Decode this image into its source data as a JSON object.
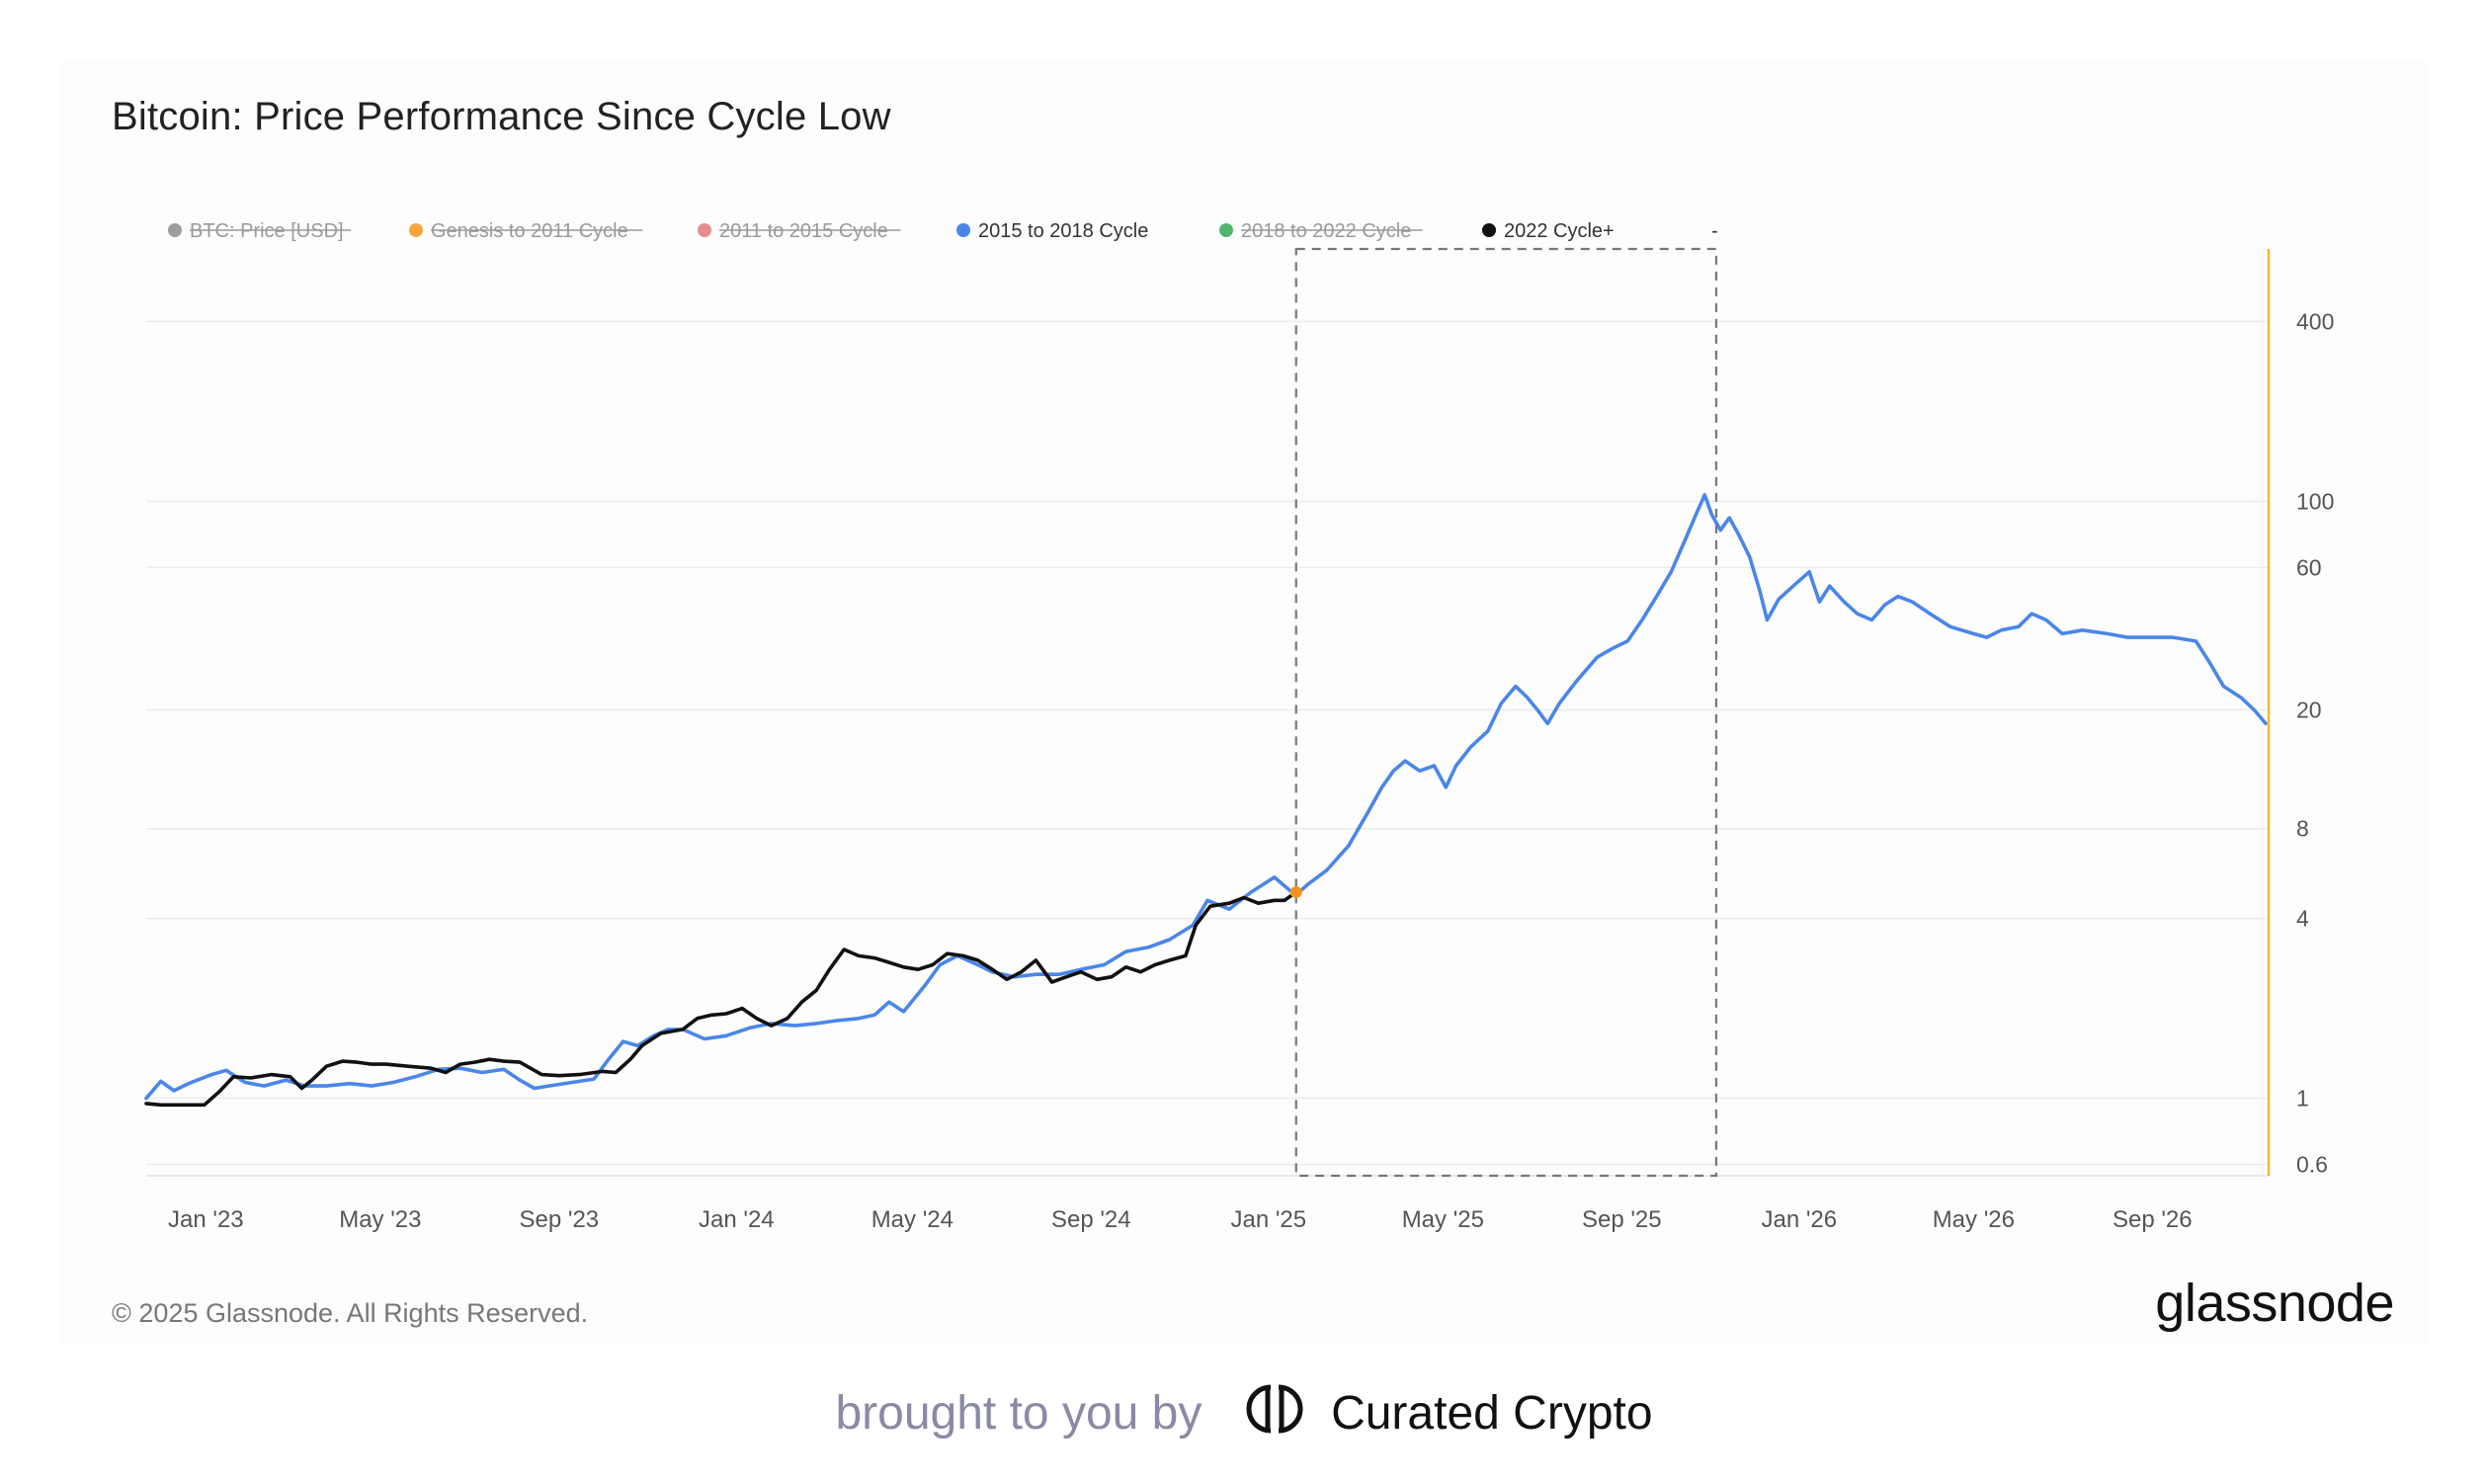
{
  "page": {
    "title": "Bitcoin: Price Performance Since Cycle Low",
    "copyright": "© 2025 Glassnode. All Rights Reserved.",
    "logo": "glassnode",
    "credit_prefix": "brought to you by",
    "credit_brand": "Curated Crypto"
  },
  "chart_data": {
    "type": "line",
    "title": "Bitcoin: Price Performance Since Cycle Low",
    "x_axis": {
      "type": "date",
      "range": [
        "2022-11-21",
        "2026-11-20"
      ],
      "tick_labels": [
        {
          "date": "2023-01-01",
          "label": "Jan '23"
        },
        {
          "date": "2023-05-01",
          "label": "May '23"
        },
        {
          "date": "2023-09-01",
          "label": "Sep '23"
        },
        {
          "date": "2024-01-01",
          "label": "Jan '24"
        },
        {
          "date": "2024-05-01",
          "label": "May '24"
        },
        {
          "date": "2024-09-01",
          "label": "Sep '24"
        },
        {
          "date": "2025-01-01",
          "label": "Jan '25"
        },
        {
          "date": "2025-05-01",
          "label": "May '25"
        },
        {
          "date": "2025-09-01",
          "label": "Sep '25"
        },
        {
          "date": "2026-01-01",
          "label": "Jan '26"
        },
        {
          "date": "2026-05-01",
          "label": "May '26"
        },
        {
          "date": "2026-09-01",
          "label": "Sep '26"
        }
      ]
    },
    "y_axis": {
      "scale": "log",
      "position": "right",
      "range": [
        0.55,
        700
      ],
      "tick_values": [
        0.6,
        1,
        4,
        8,
        20,
        60,
        100,
        400
      ],
      "tick_labels": [
        "0.6",
        "1",
        "4",
        "8",
        "20",
        "60",
        "100",
        "400"
      ]
    },
    "grid": "horizontal",
    "legend": {
      "placement": "top-left",
      "entries": [
        {
          "name": "BTC: Price [USD]",
          "color": "#8c8c8c",
          "disabled": true
        },
        {
          "name": "Genesis to 2011 Cycle",
          "color": "#f7931a",
          "disabled": true
        },
        {
          "name": "2011 to 2015 Cycle",
          "color": "#e07a7a",
          "disabled": true
        },
        {
          "name": "2015 to 2018 Cycle",
          "color": "#4a86e8",
          "disabled": false
        },
        {
          "name": "2018 to 2022 Cycle",
          "color": "#34a853",
          "disabled": true
        },
        {
          "name": "2022 Cycle+",
          "color": "#111111",
          "disabled": false
        },
        {
          "name": "-",
          "color": "#333333",
          "disabled": false
        }
      ]
    },
    "highlight_box": {
      "x_start": "2025-01-20",
      "x_end": "2025-11-05",
      "style": "dashed"
    },
    "current_marker": {
      "x": "2025-01-20",
      "color": "#f7931a"
    },
    "series": [
      {
        "name": "2015 to 2018 Cycle",
        "color": "#4a86e8",
        "points": [
          [
            "2022-11-21",
            1.0
          ],
          [
            "2022-12-01",
            1.14
          ],
          [
            "2022-12-10",
            1.06
          ],
          [
            "2022-12-20",
            1.12
          ],
          [
            "2023-01-05",
            1.2
          ],
          [
            "2023-01-15",
            1.24
          ],
          [
            "2023-01-28",
            1.13
          ],
          [
            "2023-02-10",
            1.1
          ],
          [
            "2023-02-25",
            1.15
          ],
          [
            "2023-03-10",
            1.1
          ],
          [
            "2023-03-25",
            1.1
          ],
          [
            "2023-04-10",
            1.12
          ],
          [
            "2023-04-25",
            1.1
          ],
          [
            "2023-05-10",
            1.13
          ],
          [
            "2023-05-25",
            1.18
          ],
          [
            "2023-06-10",
            1.25
          ],
          [
            "2023-06-25",
            1.26
          ],
          [
            "2023-07-10",
            1.22
          ],
          [
            "2023-07-25",
            1.25
          ],
          [
            "2023-08-05",
            1.15
          ],
          [
            "2023-08-15",
            1.08
          ],
          [
            "2023-08-25",
            1.1
          ],
          [
            "2023-09-10",
            1.13
          ],
          [
            "2023-09-25",
            1.16
          ],
          [
            "2023-10-05",
            1.35
          ],
          [
            "2023-10-15",
            1.55
          ],
          [
            "2023-10-25",
            1.5
          ],
          [
            "2023-11-05",
            1.62
          ],
          [
            "2023-11-15",
            1.7
          ],
          [
            "2023-11-25",
            1.7
          ],
          [
            "2023-12-10",
            1.58
          ],
          [
            "2023-12-25",
            1.62
          ],
          [
            "2024-01-10",
            1.72
          ],
          [
            "2024-01-25",
            1.78
          ],
          [
            "2024-02-10",
            1.75
          ],
          [
            "2024-02-25",
            1.78
          ],
          [
            "2024-03-10",
            1.82
          ],
          [
            "2024-03-25",
            1.85
          ],
          [
            "2024-04-05",
            1.9
          ],
          [
            "2024-04-15",
            2.1
          ],
          [
            "2024-04-25",
            1.95
          ],
          [
            "2024-05-10",
            2.4
          ],
          [
            "2024-05-20",
            2.8
          ],
          [
            "2024-06-01",
            3.0
          ],
          [
            "2024-06-15",
            2.8
          ],
          [
            "2024-06-25",
            2.65
          ],
          [
            "2024-07-10",
            2.55
          ],
          [
            "2024-07-25",
            2.6
          ],
          [
            "2024-08-10",
            2.6
          ],
          [
            "2024-08-25",
            2.7
          ],
          [
            "2024-09-10",
            2.8
          ],
          [
            "2024-09-25",
            3.1
          ],
          [
            "2024-10-10",
            3.2
          ],
          [
            "2024-10-25",
            3.4
          ],
          [
            "2024-11-10",
            3.8
          ],
          [
            "2024-11-20",
            4.6
          ],
          [
            "2024-12-05",
            4.3
          ],
          [
            "2024-12-20",
            4.9
          ],
          [
            "2025-01-05",
            5.5
          ],
          [
            "2025-01-15",
            5.0
          ],
          [
            "2025-01-20",
            4.8
          ],
          [
            "2025-01-28",
            5.2
          ],
          [
            "2025-02-10",
            5.8
          ],
          [
            "2025-02-25",
            7.0
          ],
          [
            "2025-03-10",
            9.0
          ],
          [
            "2025-03-20",
            11.0
          ],
          [
            "2025-03-28",
            12.5
          ],
          [
            "2025-04-05",
            13.5
          ],
          [
            "2025-04-15",
            12.5
          ],
          [
            "2025-04-25",
            13.0
          ],
          [
            "2025-05-03",
            11.0
          ],
          [
            "2025-05-10",
            13.0
          ],
          [
            "2025-05-20",
            15.0
          ],
          [
            "2025-06-01",
            17.0
          ],
          [
            "2025-06-10",
            21.0
          ],
          [
            "2025-06-20",
            24.0
          ],
          [
            "2025-06-28",
            22.0
          ],
          [
            "2025-07-05",
            20.0
          ],
          [
            "2025-07-12",
            18.0
          ],
          [
            "2025-07-20",
            21.0
          ],
          [
            "2025-08-01",
            25.0
          ],
          [
            "2025-08-15",
            30.0
          ],
          [
            "2025-08-25",
            32.0
          ],
          [
            "2025-09-05",
            34.0
          ],
          [
            "2025-09-15",
            40.0
          ],
          [
            "2025-09-25",
            48.0
          ],
          [
            "2025-10-05",
            58.0
          ],
          [
            "2025-10-15",
            75.0
          ],
          [
            "2025-10-22",
            90.0
          ],
          [
            "2025-10-28",
            105.0
          ],
          [
            "2025-11-02",
            90.0
          ],
          [
            "2025-11-08",
            80.0
          ],
          [
            "2025-11-14",
            88.0
          ],
          [
            "2025-11-20",
            78.0
          ],
          [
            "2025-11-28",
            65.0
          ],
          [
            "2025-12-05",
            50.0
          ],
          [
            "2025-12-10",
            40.0
          ],
          [
            "2025-12-18",
            47.0
          ],
          [
            "2025-12-28",
            52.0
          ],
          [
            "2026-01-08",
            58.0
          ],
          [
            "2026-01-15",
            46.0
          ],
          [
            "2026-01-22",
            52.0
          ],
          [
            "2026-02-01",
            46.0
          ],
          [
            "2026-02-10",
            42.0
          ],
          [
            "2026-02-20",
            40.0
          ],
          [
            "2026-03-01",
            45.0
          ],
          [
            "2026-03-10",
            48.0
          ],
          [
            "2026-03-20",
            46.0
          ],
          [
            "2026-04-01",
            42.0
          ],
          [
            "2026-04-15",
            38.0
          ],
          [
            "2026-05-01",
            36.0
          ],
          [
            "2026-05-10",
            35.0
          ],
          [
            "2026-05-20",
            37.0
          ],
          [
            "2026-06-01",
            38.0
          ],
          [
            "2026-06-10",
            42.0
          ],
          [
            "2026-06-20",
            40.0
          ],
          [
            "2026-07-01",
            36.0
          ],
          [
            "2026-07-15",
            37.0
          ],
          [
            "2026-08-01",
            36.0
          ],
          [
            "2026-08-15",
            35.0
          ],
          [
            "2026-09-01",
            35.0
          ],
          [
            "2026-09-15",
            35.0
          ],
          [
            "2026-10-01",
            34.0
          ],
          [
            "2026-10-10",
            29.0
          ],
          [
            "2026-10-20",
            24.0
          ],
          [
            "2026-11-01",
            22.0
          ],
          [
            "2026-11-10",
            20.0
          ],
          [
            "2026-11-18",
            18.0
          ]
        ]
      },
      {
        "name": "2022 Cycle+",
        "color": "#111111",
        "points": [
          [
            "2022-11-21",
            0.96
          ],
          [
            "2022-12-01",
            0.95
          ],
          [
            "2022-12-15",
            0.95
          ],
          [
            "2022-12-31",
            0.95
          ],
          [
            "2023-01-10",
            1.05
          ],
          [
            "2023-01-20",
            1.18
          ],
          [
            "2023-02-01",
            1.17
          ],
          [
            "2023-02-15",
            1.2
          ],
          [
            "2023-02-28",
            1.18
          ],
          [
            "2023-03-08",
            1.08
          ],
          [
            "2023-03-15",
            1.15
          ],
          [
            "2023-03-25",
            1.28
          ],
          [
            "2023-04-05",
            1.33
          ],
          [
            "2023-04-15",
            1.32
          ],
          [
            "2023-04-25",
            1.3
          ],
          [
            "2023-05-05",
            1.3
          ],
          [
            "2023-05-20",
            1.28
          ],
          [
            "2023-06-05",
            1.26
          ],
          [
            "2023-06-15",
            1.22
          ],
          [
            "2023-06-25",
            1.3
          ],
          [
            "2023-07-05",
            1.32
          ],
          [
            "2023-07-15",
            1.35
          ],
          [
            "2023-07-25",
            1.33
          ],
          [
            "2023-08-05",
            1.32
          ],
          [
            "2023-08-20",
            1.2
          ],
          [
            "2023-09-01",
            1.19
          ],
          [
            "2023-09-15",
            1.2
          ],
          [
            "2023-10-01",
            1.23
          ],
          [
            "2023-10-10",
            1.22
          ],
          [
            "2023-10-20",
            1.35
          ],
          [
            "2023-10-28",
            1.5
          ],
          [
            "2023-11-10",
            1.65
          ],
          [
            "2023-11-25",
            1.7
          ],
          [
            "2023-12-05",
            1.85
          ],
          [
            "2023-12-15",
            1.9
          ],
          [
            "2023-12-25",
            1.92
          ],
          [
            "2024-01-05",
            2.0
          ],
          [
            "2024-01-15",
            1.85
          ],
          [
            "2024-01-25",
            1.75
          ],
          [
            "2024-02-05",
            1.85
          ],
          [
            "2024-02-15",
            2.1
          ],
          [
            "2024-02-25",
            2.3
          ],
          [
            "2024-03-05",
            2.7
          ],
          [
            "2024-03-15",
            3.15
          ],
          [
            "2024-03-25",
            3.0
          ],
          [
            "2024-04-05",
            2.95
          ],
          [
            "2024-04-15",
            2.85
          ],
          [
            "2024-04-25",
            2.75
          ],
          [
            "2024-05-05",
            2.7
          ],
          [
            "2024-05-15",
            2.8
          ],
          [
            "2024-05-25",
            3.05
          ],
          [
            "2024-06-05",
            3.0
          ],
          [
            "2024-06-15",
            2.9
          ],
          [
            "2024-06-25",
            2.7
          ],
          [
            "2024-07-05",
            2.5
          ],
          [
            "2024-07-15",
            2.65
          ],
          [
            "2024-07-25",
            2.9
          ],
          [
            "2024-08-05",
            2.45
          ],
          [
            "2024-08-15",
            2.55
          ],
          [
            "2024-08-25",
            2.65
          ],
          [
            "2024-09-05",
            2.5
          ],
          [
            "2024-09-15",
            2.55
          ],
          [
            "2024-09-25",
            2.75
          ],
          [
            "2024-10-05",
            2.65
          ],
          [
            "2024-10-15",
            2.8
          ],
          [
            "2024-10-25",
            2.9
          ],
          [
            "2024-11-05",
            3.0
          ],
          [
            "2024-11-12",
            3.8
          ],
          [
            "2024-11-22",
            4.4
          ],
          [
            "2024-12-05",
            4.5
          ],
          [
            "2024-12-15",
            4.7
          ],
          [
            "2024-12-25",
            4.5
          ],
          [
            "2025-01-05",
            4.6
          ],
          [
            "2025-01-12",
            4.6
          ],
          [
            "2025-01-20",
            4.9
          ]
        ]
      }
    ]
  }
}
